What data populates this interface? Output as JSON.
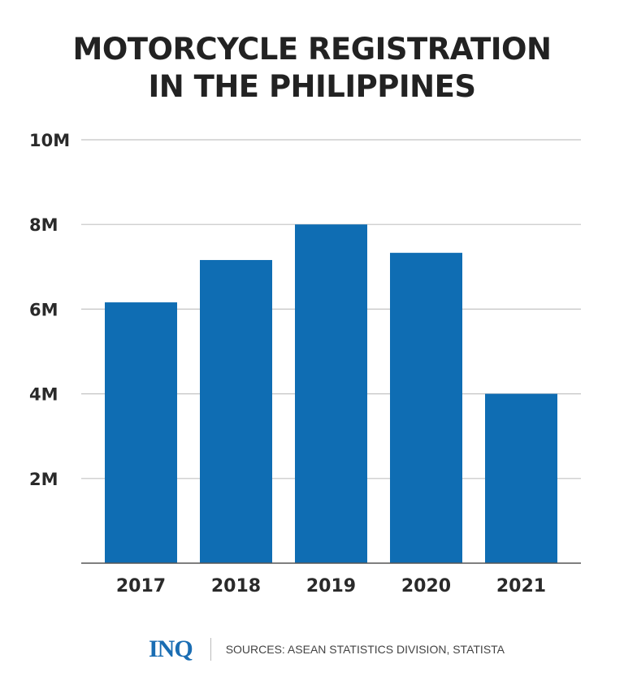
{
  "chart_data": {
    "type": "bar",
    "title": "MOTORCYCLE REGISTRATION IN THE PHILIPPINES",
    "title_lines": [
      "MOTORCYCLE REGISTRATION",
      "IN THE PHILIPPINES"
    ],
    "categories": [
      "2017",
      "2018",
      "2019",
      "2020",
      "2021"
    ],
    "values": [
      6.16,
      7.16,
      8.0,
      7.33,
      4.0
    ],
    "unit": "M",
    "ylim": [
      0,
      10
    ],
    "yticks": [
      2,
      4,
      6,
      8,
      10
    ],
    "ytick_labels": [
      "2M",
      "4M",
      "6M",
      "8M",
      "10M"
    ],
    "grid": true,
    "bar_color": "#0f6db3"
  },
  "footer": {
    "logo": "INQ",
    "source": "SOURCES: ASEAN STATISTICS DIVISION, STATISTA"
  }
}
